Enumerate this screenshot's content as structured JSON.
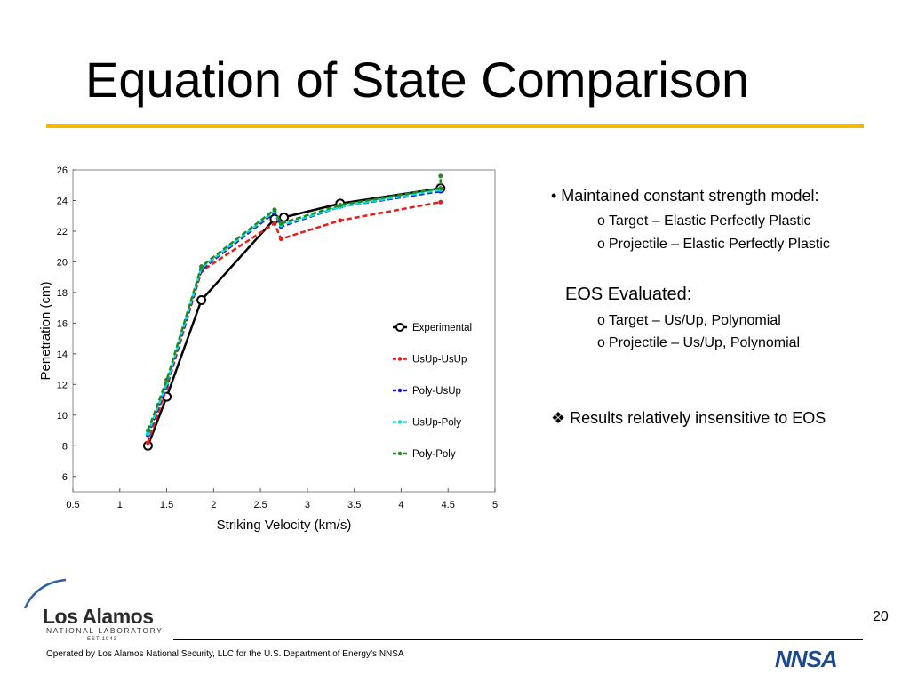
{
  "slide": {
    "title": "Equation of State Comparison",
    "page_number": "20",
    "footer": "Operated by Los Alamos National Security, LLC for the U.S. Department of Energy’s NNSA",
    "logo": {
      "name": "Los Alamos",
      "subtitle": "NATIONAL LABORATORY",
      "est": "EST.1943"
    },
    "nnsa": "NNSA",
    "bullets": {
      "main": "• Maintained constant strength model:",
      "strength_items": [
        "Target – Elastic Perfectly Plastic",
        "Projectile – Elastic Perfectly Plastic"
      ],
      "eos_heading": "EOS Evaluated:",
      "eos_items": [
        "Target – Us/Up, Polynomial",
        "Projectile – Us/Up, Polynomial"
      ],
      "sub_marker": "o",
      "result": "❖ Results relatively insensitive to EOS"
    }
  },
  "chart_data": {
    "type": "line",
    "xlabel": "Striking Velocity (km/s)",
    "ylabel": "Penetration (cm)",
    "xlim": [
      0.5,
      5
    ],
    "ylim": [
      5,
      26
    ],
    "xticks": [
      "0.5",
      "1",
      "1.5",
      "2",
      "2.5",
      "3",
      "3.5",
      "4",
      "4.5",
      "5"
    ],
    "yticks": [
      "6",
      "8",
      "10",
      "12",
      "14",
      "16",
      "18",
      "20",
      "22",
      "24",
      "26"
    ],
    "legend_position": "right",
    "series": [
      {
        "name": "Experimental",
        "color": "#000000",
        "dash": "solid",
        "marker": "circle",
        "x": [
          1.3,
          1.5,
          1.87,
          2.65,
          2.75,
          3.35,
          4.42
        ],
        "y": [
          8.0,
          11.2,
          17.5,
          22.8,
          22.9,
          23.8,
          24.8
        ]
      },
      {
        "name": "UsUp-UsUp",
        "color": "#e02020",
        "dash": "dashed",
        "marker": "dot",
        "x": [
          1.3,
          1.5,
          1.87,
          2.65,
          2.72,
          3.35,
          4.42
        ],
        "y": [
          8.2,
          11.8,
          19.4,
          22.5,
          21.5,
          22.7,
          23.9
        ]
      },
      {
        "name": "Poly-UsUp",
        "color": "#1a1acc",
        "dash": "dashed",
        "marker": "dot",
        "x": [
          1.3,
          1.5,
          1.87,
          2.65,
          2.72,
          3.35,
          4.42
        ],
        "y": [
          8.7,
          12.0,
          19.5,
          23.2,
          22.3,
          23.6,
          24.6
        ]
      },
      {
        "name": "UsUp-Poly",
        "color": "#00e5e5",
        "dash": "dashed",
        "marker": "dot",
        "x": [
          1.3,
          1.5,
          1.87,
          2.65,
          2.72,
          3.35,
          4.42
        ],
        "y": [
          8.8,
          12.1,
          19.6,
          23.3,
          22.4,
          23.6,
          24.7
        ]
      },
      {
        "name": "Poly-Poly",
        "color": "#1e8c1e",
        "dash": "dashed",
        "marker": "dot",
        "x": [
          1.3,
          1.5,
          1.87,
          2.65,
          2.72,
          3.35,
          4.42,
          4.42
        ],
        "y": [
          9.0,
          12.3,
          19.7,
          23.4,
          22.5,
          23.7,
          24.8,
          25.6
        ]
      }
    ]
  }
}
